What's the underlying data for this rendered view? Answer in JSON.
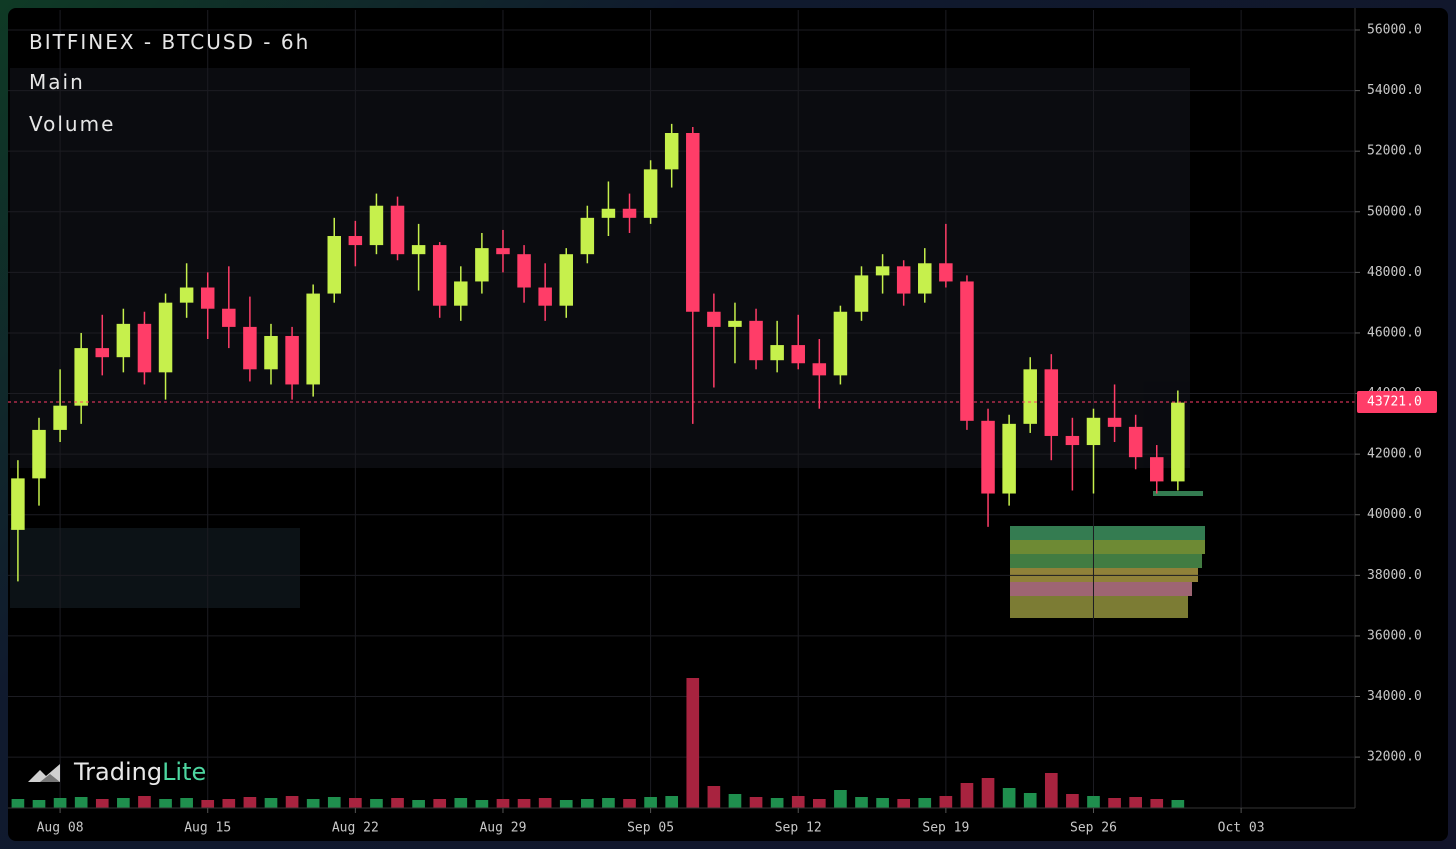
{
  "chart_data": {
    "type": "candlestick",
    "title": "BITFINEX - BTCUSD - 6h",
    "panels": [
      "Main",
      "Volume"
    ],
    "brand": {
      "name": "Trading",
      "accent": "Lite"
    },
    "up_color": "#c6f04c",
    "down_color": "#ff3d68",
    "volume_up_color": "#1f8f4e",
    "volume_down_color": "#a8233f",
    "grid": true,
    "open": [
      39500,
      41200,
      42800,
      43600,
      45500,
      45200,
      46300,
      44700,
      47000,
      47500,
      46800,
      46200,
      44800,
      45900,
      44300,
      47300,
      49200,
      48900,
      50200,
      48600,
      48900,
      46900,
      47700,
      48800,
      48600,
      47500,
      46900,
      48600,
      49800,
      50100,
      49800,
      51400,
      52600,
      46700,
      46200,
      46400,
      45100,
      45600,
      45000,
      44600,
      46700,
      47900,
      48200,
      47300,
      48300,
      47700,
      43100,
      40700,
      43000,
      44800,
      42600,
      42300,
      43200,
      42900,
      41900,
      41100
    ],
    "high": [
      41800,
      43200,
      44800,
      46000,
      46600,
      46800,
      46700,
      47300,
      48300,
      48000,
      48200,
      47200,
      46300,
      46200,
      47600,
      49800,
      49700,
      50600,
      50500,
      49600,
      49000,
      48200,
      49300,
      49400,
      48900,
      48300,
      48800,
      50200,
      51000,
      50600,
      51700,
      52900,
      52800,
      47300,
      47000,
      46800,
      46400,
      46600,
      45800,
      46900,
      48200,
      48600,
      48400,
      48800,
      49600,
      47900,
      43500,
      43300,
      45200,
      45300,
      43200,
      43500,
      44300,
      43300,
      42300,
      44100
    ],
    "low": [
      37800,
      40300,
      42400,
      43000,
      44600,
      44700,
      44300,
      43800,
      46500,
      45800,
      45500,
      44400,
      44300,
      43800,
      43900,
      47000,
      48200,
      48600,
      48400,
      47400,
      46500,
      46400,
      47300,
      48000,
      47000,
      46400,
      46500,
      48300,
      49200,
      49300,
      49600,
      50800,
      43000,
      44200,
      45000,
      44800,
      44700,
      44800,
      43500,
      44300,
      46400,
      47300,
      46900,
      47000,
      47500,
      42800,
      39600,
      40300,
      42700,
      41800,
      40800,
      40700,
      42400,
      41500,
      40700,
      40800
    ],
    "close": [
      41200,
      42800,
      43600,
      45500,
      45200,
      46300,
      44700,
      47000,
      47500,
      46800,
      46200,
      44800,
      45900,
      44300,
      47300,
      49200,
      48900,
      50200,
      48600,
      48900,
      46900,
      47700,
      48800,
      48600,
      47500,
      46900,
      48600,
      49800,
      50100,
      49800,
      51400,
      52600,
      46700,
      46200,
      46400,
      45100,
      45600,
      45000,
      44600,
      46700,
      47900,
      48200,
      47300,
      48300,
      47700,
      43100,
      40700,
      43000,
      44800,
      42600,
      42300,
      43200,
      42900,
      41900,
      41100,
      43700
    ],
    "volume": [
      9,
      8,
      10,
      11,
      9,
      10,
      12,
      9,
      10,
      8,
      9,
      11,
      10,
      12,
      9,
      11,
      10,
      9,
      10,
      8,
      9,
      10,
      8,
      9,
      9,
      10,
      8,
      9,
      10,
      9,
      11,
      12,
      130,
      22,
      14,
      11,
      10,
      12,
      9,
      18,
      11,
      10,
      9,
      10,
      12,
      25,
      30,
      20,
      15,
      35,
      14,
      12,
      10,
      11,
      9,
      8
    ],
    "xlim": [
      -0.47,
      63.4
    ],
    "xticks": [
      {
        "value": 2,
        "label": "Aug 08"
      },
      {
        "value": 9,
        "label": "Aug 15"
      },
      {
        "value": 16,
        "label": "Aug 22"
      },
      {
        "value": 23,
        "label": "Aug 29"
      },
      {
        "value": 30,
        "label": "Sep 05"
      },
      {
        "value": 37,
        "label": "Sep 12"
      },
      {
        "value": 44,
        "label": "Sep 19"
      },
      {
        "value": 51,
        "label": "Sep 26"
      },
      {
        "value": 58,
        "label": "Oct 03"
      }
    ],
    "ylim": [
      30320,
      56660
    ],
    "yticks": [
      {
        "value": 32000,
        "label": "32000.0"
      },
      {
        "value": 34000,
        "label": "34000.0"
      },
      {
        "value": 36000,
        "label": "36000.0"
      },
      {
        "value": 38000,
        "label": "38000.0"
      },
      {
        "value": 40000,
        "label": "40000.0"
      },
      {
        "value": 42000,
        "label": "42000.0"
      },
      {
        "value": 44000,
        "label": "44000.0"
      },
      {
        "value": 46000,
        "label": "46000.0"
      },
      {
        "value": 48000,
        "label": "48000.0"
      },
      {
        "value": 50000,
        "label": "50000.0"
      },
      {
        "value": 52000,
        "label": "52000.0"
      },
      {
        "value": 54000,
        "label": "54000.0"
      },
      {
        "value": 56000,
        "label": "56000.0"
      }
    ],
    "last_price": {
      "value": 43721,
      "label": "43721.0",
      "color": "#ff3d68"
    }
  }
}
